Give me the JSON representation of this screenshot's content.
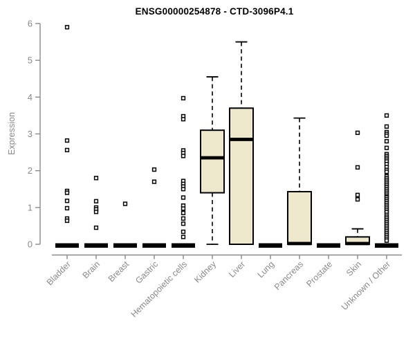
{
  "chart_data": {
    "type": "boxplot",
    "title": "ENSG00000254878 - CTD-3096P4.1",
    "ylabel": "Expression",
    "xlabel": "",
    "ylim": [
      0,
      6
    ],
    "yticks": [
      0,
      1,
      2,
      3,
      4,
      5,
      6
    ],
    "grid": "off",
    "legend": "none",
    "categories": [
      "Bladder",
      "Brain",
      "Breast",
      "Gastric",
      "Hematopoietic cells",
      "Kidney",
      "Liver",
      "Lung",
      "Pancreas",
      "Prostate",
      "Skin",
      "Unknown / Other"
    ],
    "boxes": [
      {
        "category": "Bladder",
        "q1": 0,
        "median": 0,
        "q3": 0,
        "whisker_low": 0,
        "whisker_high": 0,
        "outliers": [
          5.9,
          2.82,
          2.56,
          1.45,
          1.4,
          1.18,
          0.98,
          0.7,
          0.64
        ]
      },
      {
        "category": "Brain",
        "q1": 0,
        "median": 0,
        "q3": 0,
        "whisker_low": 0,
        "whisker_high": 0,
        "outliers": [
          1.8,
          1.17,
          1.0,
          0.95,
          0.88,
          0.45
        ]
      },
      {
        "category": "Breast",
        "q1": 0,
        "median": 0,
        "q3": 0,
        "whisker_low": 0,
        "whisker_high": 0,
        "outliers": [
          1.1
        ]
      },
      {
        "category": "Gastric",
        "q1": 0,
        "median": 0,
        "q3": 0,
        "whisker_low": 0,
        "whisker_high": 0,
        "outliers": [
          2.03,
          1.7
        ]
      },
      {
        "category": "Hematopoietic cells",
        "q1": 0,
        "median": 0,
        "q3": 0,
        "whisker_low": 0,
        "whisker_high": 0,
        "outliers": [
          3.97,
          3.48,
          3.4,
          2.55,
          2.48,
          2.4,
          1.72,
          1.64,
          1.57,
          1.5,
          1.27,
          1.05,
          0.97,
          0.85,
          0.7,
          0.56,
          0.34,
          0.2
        ]
      },
      {
        "category": "Kidney",
        "q1": 1.4,
        "median": 2.35,
        "q3": 3.1,
        "whisker_low": 0,
        "whisker_high": 4.55,
        "outliers": []
      },
      {
        "category": "Liver",
        "q1": 0,
        "median": 2.85,
        "q3": 3.7,
        "whisker_low": 0,
        "whisker_high": 5.5,
        "outliers": []
      },
      {
        "category": "Lung",
        "q1": 0,
        "median": 0,
        "q3": 0,
        "whisker_low": 0,
        "whisker_high": 0,
        "outliers": []
      },
      {
        "category": "Pancreas",
        "q1": 0,
        "median": 0.02,
        "q3": 1.43,
        "whisker_low": 0,
        "whisker_high": 3.43,
        "outliers": []
      },
      {
        "category": "Prostate",
        "q1": 0,
        "median": 0,
        "q3": 0,
        "whisker_low": 0,
        "whisker_high": 0,
        "outliers": []
      },
      {
        "category": "Skin",
        "q1": 0,
        "median": 0.02,
        "q3": 0.2,
        "whisker_low": 0,
        "whisker_high": 0.42,
        "outliers": [
          3.03,
          2.09,
          1.34,
          1.22
        ]
      },
      {
        "category": "Unknown / Other",
        "q1": 0,
        "median": 0,
        "q3": 0,
        "whisker_low": 0,
        "whisker_high": 0,
        "outliers": [
          3.5,
          3.2,
          3.05,
          3.0,
          2.95,
          2.8,
          2.62,
          2.45,
          2.4,
          2.35,
          2.3,
          2.25,
          2.18,
          2.1,
          2.02,
          1.97,
          1.85,
          1.8,
          1.75,
          1.7,
          1.65,
          1.6,
          1.55,
          1.5,
          1.45,
          1.4,
          1.35,
          1.3,
          1.27,
          1.22,
          1.17,
          1.12,
          1.07,
          1.02,
          0.97,
          0.92,
          0.87,
          0.8,
          0.75,
          0.7,
          0.65,
          0.6,
          0.55,
          0.5,
          0.45,
          0.4,
          0.35,
          0.3,
          0.25,
          0.2,
          0.15,
          0.1
        ]
      }
    ],
    "colors": {
      "box_fill": "#EDE7CC",
      "box_border": "#000000",
      "median": "#000000",
      "whisker": "#000000",
      "outlier_stroke": "#000000",
      "outlier_fill": "#ffffff",
      "axis": "#8a8a8a",
      "tick_label": "#8a8a8a",
      "title": "#000000",
      "background": "#ffffff"
    }
  }
}
